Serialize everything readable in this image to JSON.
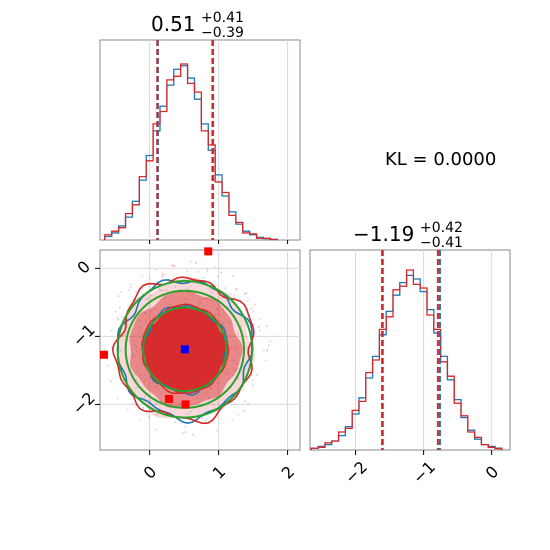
{
  "chart_data": [
    {
      "type": "histogram",
      "panel": "marginal-x",
      "title": {
        "median": "0.51",
        "plus": "+0.41",
        "minus": "−0.39"
      },
      "xlim": [
        -0.72,
        2.18
      ],
      "bins_x": [
        -0.6,
        -0.5,
        -0.4,
        -0.3,
        -0.2,
        -0.1,
        0.0,
        0.1,
        0.2,
        0.3,
        0.4,
        0.5,
        0.6,
        0.7,
        0.8,
        0.9,
        1.0,
        1.1,
        1.2,
        1.3,
        1.4,
        1.5,
        1.6,
        1.7,
        1.8
      ],
      "series": [
        {
          "color": "#1f77b4",
          "values": [
            0.02,
            0.04,
            0.08,
            0.13,
            0.22,
            0.34,
            0.48,
            0.62,
            0.76,
            0.88,
            0.97,
            0.99,
            0.92,
            0.8,
            0.66,
            0.51,
            0.37,
            0.25,
            0.16,
            0.09,
            0.05,
            0.03,
            0.015,
            0.008,
            0.004
          ]
        },
        {
          "color": "#d62728",
          "values": [
            0.03,
            0.05,
            0.07,
            0.15,
            0.2,
            0.36,
            0.45,
            0.66,
            0.73,
            0.91,
            0.93,
            1.0,
            0.89,
            0.84,
            0.62,
            0.54,
            0.33,
            0.27,
            0.14,
            0.1,
            0.04,
            0.035,
            0.01,
            0.01,
            0.003
          ]
        }
      ],
      "quantile_lines": {
        "blue": [
          0.12,
          0.51,
          0.92
        ],
        "red": [
          0.11,
          0.51,
          0.91
        ]
      },
      "xticks": []
    },
    {
      "type": "contour",
      "panel": "joint",
      "xlim": [
        -0.72,
        2.18
      ],
      "ylim": [
        -2.67,
        0.27
      ],
      "xticks": [
        "0",
        "1",
        "2"
      ],
      "xtick_values": [
        0,
        1,
        2
      ],
      "yticks": [
        "0",
        "−1",
        "−2"
      ],
      "ytick_values": [
        0,
        -1,
        -2
      ],
      "center": [
        0.51,
        -1.19
      ],
      "sigma": [
        0.39,
        0.41
      ],
      "fill_color": "#d62728",
      "contour_colors": [
        "#1f77b4",
        "#d62728",
        "#2ca02c"
      ],
      "markers": [
        {
          "shape": "square",
          "color": "#0000ff",
          "x": 0.51,
          "y": -1.19
        },
        {
          "shape": "square",
          "color": "#ff0000",
          "x": 0.85,
          "y": 0.25
        },
        {
          "shape": "square",
          "color": "#ff0000",
          "x": 0.28,
          "y": -1.92
        },
        {
          "shape": "square",
          "color": "#ff0000",
          "x": 0.52,
          "y": -2.0
        },
        {
          "shape": "square",
          "color": "#ff0000",
          "x": -0.72,
          "y": -1.27
        }
      ]
    },
    {
      "type": "histogram",
      "panel": "marginal-y",
      "title": {
        "median": "−1.19",
        "plus": "+0.42",
        "minus": "−0.41"
      },
      "xlim": [
        -2.67,
        0.27
      ],
      "bins_x": [
        -2.6,
        -2.5,
        -2.4,
        -2.3,
        -2.2,
        -2.1,
        -2.0,
        -1.9,
        -1.8,
        -1.7,
        -1.6,
        -1.5,
        -1.4,
        -1.3,
        -1.2,
        -1.1,
        -1.0,
        -0.9,
        -0.8,
        -0.7,
        -0.6,
        -0.5,
        -0.4,
        -0.3,
        -0.2,
        -0.1,
        0.0,
        0.1
      ],
      "series": [
        {
          "color": "#1f77b4",
          "values": [
            0.01,
            0.02,
            0.03,
            0.05,
            0.08,
            0.13,
            0.2,
            0.29,
            0.4,
            0.52,
            0.64,
            0.77,
            0.86,
            0.93,
            0.97,
            0.95,
            0.88,
            0.78,
            0.65,
            0.52,
            0.39,
            0.28,
            0.18,
            0.11,
            0.06,
            0.03,
            0.02,
            0.01
          ]
        },
        {
          "color": "#d62728",
          "values": [
            0.01,
            0.015,
            0.04,
            0.05,
            0.1,
            0.12,
            0.22,
            0.27,
            0.43,
            0.5,
            0.67,
            0.74,
            0.89,
            0.91,
            1.0,
            0.92,
            0.9,
            0.75,
            0.67,
            0.49,
            0.41,
            0.26,
            0.19,
            0.1,
            0.07,
            0.03,
            0.015,
            0.008
          ]
        }
      ],
      "quantile_lines": {
        "blue": [
          -1.6,
          -0.76
        ],
        "red": [
          -1.61,
          -0.79
        ]
      },
      "xticks": [
        "−2",
        "−1",
        "0"
      ],
      "xtick_values": [
        -2,
        -1,
        0
      ]
    }
  ],
  "kl_label": "KL = 0.0000"
}
